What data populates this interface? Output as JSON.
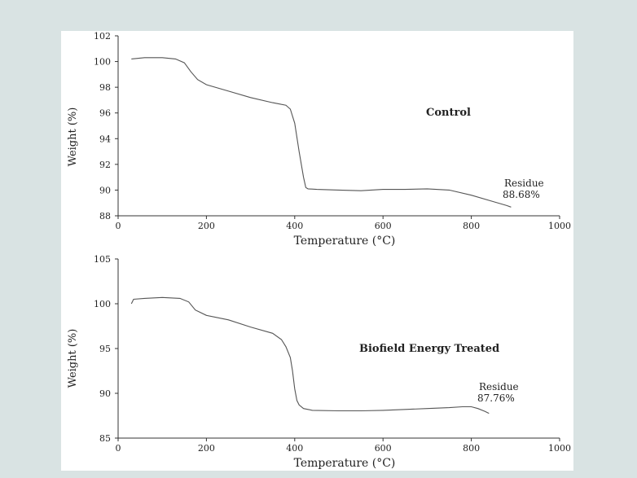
{
  "chart_data": [
    {
      "type": "line",
      "title": "Control",
      "xlabel": "Temperature (°C)",
      "ylabel": "Weight (%)",
      "xlim": [
        0,
        1000
      ],
      "ylim": [
        88,
        102
      ],
      "x_ticks": [
        0,
        200,
        400,
        600,
        800,
        1000
      ],
      "y_ticks": [
        88,
        90,
        92,
        94,
        96,
        98,
        100,
        102
      ],
      "annotation": [
        "Residue",
        "88.68%"
      ],
      "series": [
        {
          "x": [
            30,
            60,
            100,
            130,
            150,
            165,
            180,
            200,
            250,
            300,
            350,
            380,
            390,
            400,
            410,
            420,
            425,
            430,
            450,
            500,
            550,
            600,
            650,
            700,
            750,
            800,
            850,
            880,
            890
          ],
          "values": [
            100.2,
            100.3,
            100.3,
            100.2,
            99.9,
            99.2,
            98.6,
            98.2,
            97.7,
            97.2,
            96.8,
            96.6,
            96.3,
            95.2,
            93.0,
            91.0,
            90.2,
            90.1,
            90.05,
            90.0,
            89.95,
            90.05,
            90.05,
            90.1,
            90.0,
            89.6,
            89.1,
            88.8,
            88.68
          ]
        }
      ]
    },
    {
      "type": "line",
      "title": "Biofield Energy Treated",
      "xlabel": "Temperature (°C)",
      "ylabel": "Weight (%)",
      "xlim": [
        0,
        1000
      ],
      "ylim": [
        85,
        105
      ],
      "x_ticks": [
        0,
        200,
        400,
        600,
        800,
        1000
      ],
      "y_ticks": [
        85,
        90,
        95,
        100,
        105
      ],
      "annotation": [
        "Residue",
        "87.76%"
      ],
      "series": [
        {
          "x": [
            30,
            35,
            60,
            100,
            140,
            160,
            175,
            200,
            250,
            300,
            350,
            370,
            380,
            390,
            395,
            400,
            405,
            410,
            420,
            440,
            500,
            550,
            600,
            650,
            700,
            750,
            780,
            800,
            815,
            830,
            840
          ],
          "values": [
            100.0,
            100.5,
            100.6,
            100.7,
            100.6,
            100.2,
            99.3,
            98.7,
            98.2,
            97.4,
            96.7,
            96.0,
            95.2,
            94.0,
            92.5,
            90.5,
            89.2,
            88.7,
            88.3,
            88.1,
            88.05,
            88.05,
            88.1,
            88.2,
            88.3,
            88.4,
            88.5,
            88.5,
            88.3,
            88.0,
            87.76
          ]
        }
      ]
    }
  ]
}
